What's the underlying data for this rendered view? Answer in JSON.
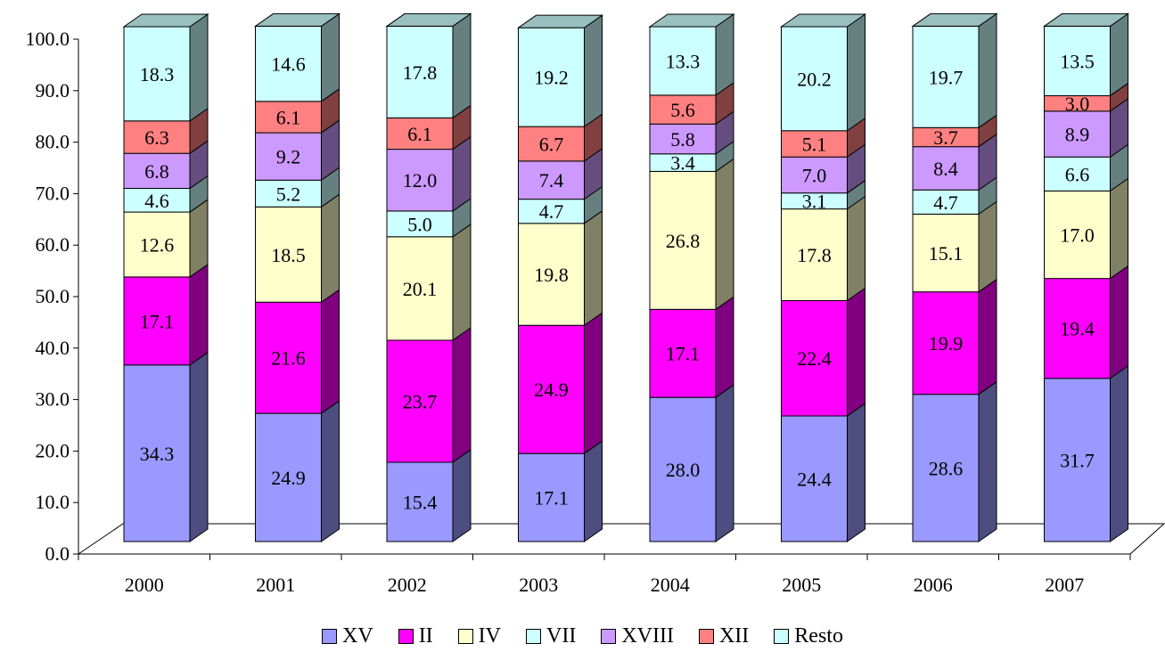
{
  "chart_data": {
    "type": "bar",
    "stacked": true,
    "three_d": true,
    "categories": [
      "2000",
      "2001",
      "2002",
      "2003",
      "2004",
      "2005",
      "2006",
      "2007"
    ],
    "ylim": [
      0,
      100
    ],
    "yticks": [
      "0.0",
      "10.0",
      "20.0",
      "30.0",
      "40.0",
      "50.0",
      "60.0",
      "70.0",
      "80.0",
      "90.0",
      "100.0"
    ],
    "legend_position": "bottom",
    "grid": false,
    "series": [
      {
        "name": "XV",
        "color": "#9999FF",
        "labels": [
          "34.3",
          "24.9",
          "15.4",
          "17.1",
          "28.0",
          "24.4",
          "28.6",
          "31.7"
        ],
        "values": [
          34.3,
          24.9,
          15.4,
          17.1,
          28.0,
          24.4,
          28.6,
          31.7
        ]
      },
      {
        "name": "II",
        "color": "#FF00FF",
        "labels": [
          "17.1",
          "21.6",
          "23.7",
          "24.9",
          "17.1",
          "22.4",
          "19.9",
          "19.4"
        ],
        "values": [
          17.1,
          21.6,
          23.7,
          24.9,
          17.1,
          22.4,
          19.9,
          19.4
        ]
      },
      {
        "name": "IV",
        "color": "#FFFFCC",
        "labels": [
          "12.6",
          "18.5",
          "20.1",
          "19.8",
          "26.8",
          "17.8",
          "15.1",
          "17.0"
        ],
        "values": [
          12.6,
          18.5,
          20.1,
          19.8,
          26.8,
          17.8,
          15.1,
          17.0
        ]
      },
      {
        "name": "VII",
        "color": "#CCFFFF",
        "labels": [
          "4.6",
          "5.2",
          "5.0",
          "4.7",
          "3.4",
          "3.1",
          "4.7",
          "6.6"
        ],
        "values": [
          4.6,
          5.2,
          5.0,
          4.7,
          3.4,
          3.1,
          4.7,
          6.6
        ]
      },
      {
        "name": "XVIII",
        "color": "#CC99FF",
        "labels": [
          "6.8",
          "9.2",
          "12.0",
          "7.4",
          "5.8",
          "7.0",
          "8.4",
          "8.9"
        ],
        "values": [
          6.8,
          9.2,
          12.0,
          7.4,
          5.8,
          7.0,
          8.4,
          8.9
        ]
      },
      {
        "name": "XII",
        "color": "#FF8080",
        "labels": [
          "6.3",
          "6.1",
          "6.1",
          "6.7",
          "5.6",
          "5.1",
          "3.7",
          "3.0"
        ],
        "values": [
          6.3,
          6.1,
          6.1,
          6.7,
          5.6,
          5.1,
          3.7,
          3.0
        ]
      },
      {
        "name": "Resto",
        "color": "#CCFFFF",
        "labels": [
          "18.3",
          "14.6",
          "17.8",
          "19.2",
          "13.3",
          "20.2",
          "19.7",
          "13.5"
        ],
        "values": [
          18.3,
          14.6,
          17.8,
          19.2,
          13.3,
          20.2,
          19.7,
          13.5
        ]
      }
    ]
  }
}
